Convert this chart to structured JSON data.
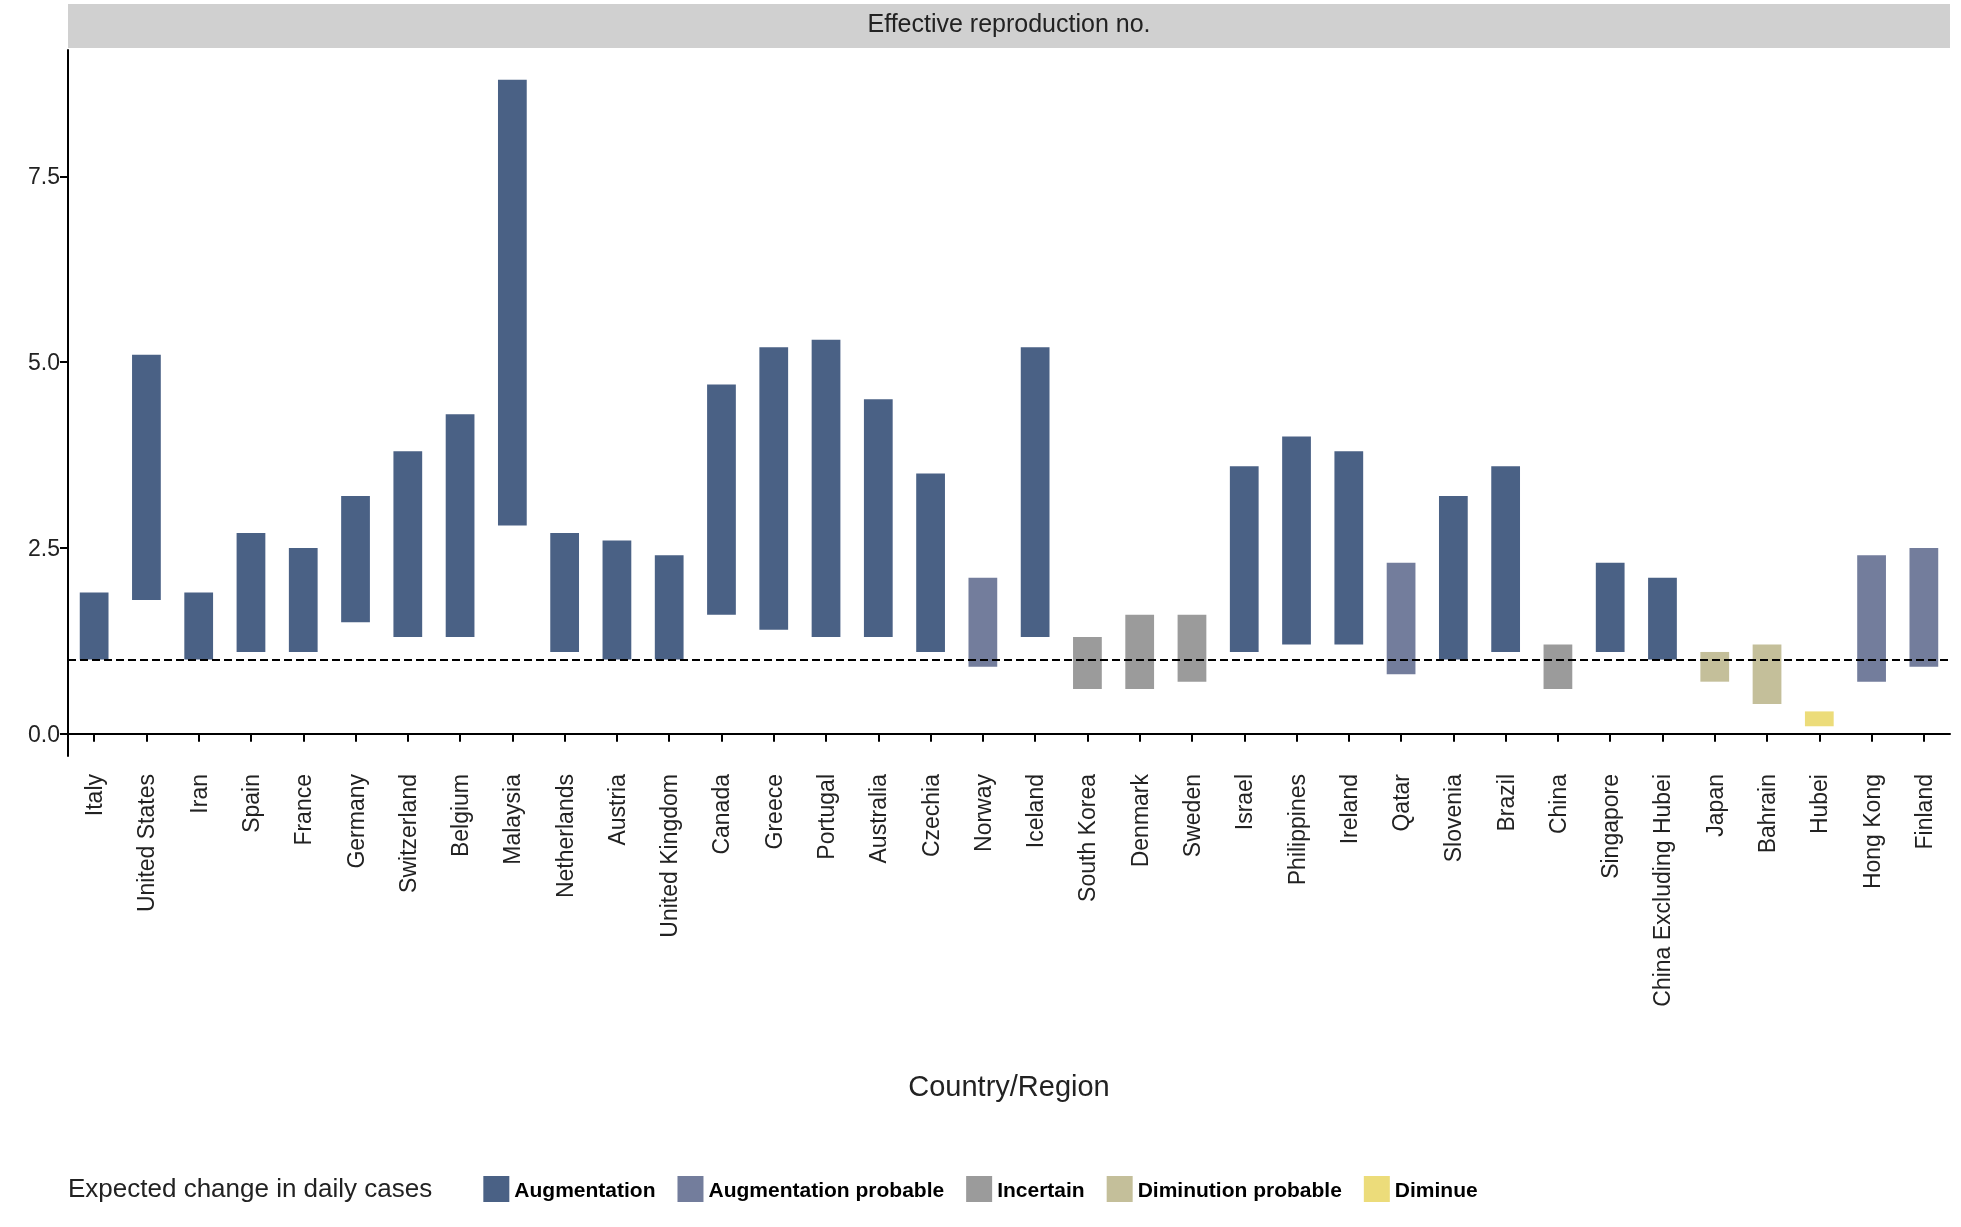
{
  "chart_data": {
    "type": "bar",
    "title": "Effective reproduction no.",
    "xlabel": "Country/Region",
    "legend_title": "Expected change in daily cases",
    "categories": [
      "Italy",
      "United States",
      "Iran",
      "Spain",
      "France",
      "Germany",
      "Switzerland",
      "Belgium",
      "Malaysia",
      "Netherlands",
      "Austria",
      "United Kingdom",
      "Canada",
      "Greece",
      "Portugal",
      "Australia",
      "Czechia",
      "Norway",
      "Iceland",
      "South Korea",
      "Denmark",
      "Sweden",
      "Israel",
      "Philippines",
      "Ireland",
      "Qatar",
      "Slovenia",
      "Brazil",
      "China",
      "Singapore",
      "China Excluding Hubei",
      "Japan",
      "Bahrain",
      "Hubei",
      "Hong Kong",
      "Finland"
    ],
    "series": [
      {
        "name": "Augmentation",
        "color": "#4a6185",
        "base": [
          1.0,
          1.8,
          1.0,
          1.1,
          1.1,
          1.5,
          1.3,
          1.3,
          2.8,
          1.1,
          1.0,
          1.0,
          1.6,
          1.4,
          1.3,
          1.3,
          1.1,
          null,
          1.3,
          null,
          null,
          null,
          1.1,
          1.2,
          1.2,
          null,
          1.0,
          1.1,
          null,
          1.1,
          1.0,
          null,
          null,
          null,
          null,
          null
        ],
        "values": [
          0.9,
          3.3,
          0.9,
          1.6,
          1.4,
          1.7,
          2.5,
          3.0,
          6.0,
          1.6,
          1.6,
          1.4,
          3.1,
          3.8,
          4.0,
          3.2,
          2.4,
          null,
          3.9,
          null,
          null,
          null,
          2.5,
          2.8,
          2.6,
          null,
          2.2,
          2.5,
          null,
          1.2,
          1.1,
          null,
          null,
          null,
          null,
          null
        ]
      },
      {
        "name": "Augmentation probable",
        "color": "#737d9c",
        "base": [
          null,
          null,
          null,
          null,
          null,
          null,
          null,
          null,
          null,
          null,
          null,
          null,
          null,
          null,
          null,
          null,
          null,
          0.9,
          null,
          null,
          null,
          null,
          null,
          null,
          null,
          0.8,
          null,
          null,
          null,
          null,
          null,
          null,
          null,
          null,
          0.7,
          0.9
        ],
        "values": [
          null,
          null,
          null,
          null,
          null,
          null,
          null,
          null,
          null,
          null,
          null,
          null,
          null,
          null,
          null,
          null,
          null,
          1.2,
          null,
          null,
          null,
          null,
          null,
          null,
          null,
          1.5,
          null,
          null,
          null,
          null,
          null,
          null,
          null,
          null,
          1.7,
          1.6
        ]
      },
      {
        "name": "Incertain",
        "color": "#9b9b9b",
        "base": [
          null,
          null,
          null,
          null,
          null,
          null,
          null,
          null,
          null,
          null,
          null,
          null,
          null,
          null,
          null,
          null,
          null,
          null,
          null,
          0.6,
          0.6,
          0.7,
          null,
          null,
          null,
          null,
          null,
          null,
          0.6,
          null,
          null,
          null,
          null,
          null,
          null,
          null
        ],
        "values": [
          null,
          null,
          null,
          null,
          null,
          null,
          null,
          null,
          null,
          null,
          null,
          null,
          null,
          null,
          null,
          null,
          null,
          null,
          null,
          0.7,
          1.0,
          0.9,
          null,
          null,
          null,
          null,
          null,
          null,
          0.6,
          null,
          null,
          null,
          null,
          null,
          null,
          null
        ]
      },
      {
        "name": "Diminution probable",
        "color": "#c4bf9a",
        "base": [
          null,
          null,
          null,
          null,
          null,
          null,
          null,
          null,
          null,
          null,
          null,
          null,
          null,
          null,
          null,
          null,
          null,
          null,
          null,
          null,
          null,
          null,
          null,
          null,
          null,
          null,
          null,
          null,
          null,
          null,
          null,
          0.7,
          0.4,
          null,
          null,
          null
        ],
        "values": [
          null,
          null,
          null,
          null,
          null,
          null,
          null,
          null,
          null,
          null,
          null,
          null,
          null,
          null,
          null,
          null,
          null,
          null,
          null,
          null,
          null,
          null,
          null,
          null,
          null,
          null,
          null,
          null,
          null,
          null,
          null,
          0.4,
          0.8,
          null,
          null,
          null
        ]
      },
      {
        "name": "Diminue",
        "color": "#ecdc7a",
        "base": [
          null,
          null,
          null,
          null,
          null,
          null,
          null,
          null,
          null,
          null,
          null,
          null,
          null,
          null,
          null,
          null,
          null,
          null,
          null,
          null,
          null,
          null,
          null,
          null,
          null,
          null,
          null,
          null,
          null,
          null,
          null,
          null,
          null,
          0.1,
          null,
          null
        ],
        "values": [
          null,
          null,
          null,
          null,
          null,
          null,
          null,
          null,
          null,
          null,
          null,
          null,
          null,
          null,
          null,
          null,
          null,
          null,
          null,
          null,
          null,
          null,
          null,
          null,
          null,
          null,
          null,
          null,
          null,
          null,
          null,
          null,
          null,
          0.2,
          null,
          null
        ]
      }
    ],
    "ylim": [
      -0.3,
      9.2
    ],
    "yticks": [
      {
        "value": 0,
        "label": "0.0"
      },
      2.5,
      {
        "value": 5,
        "label": "5.0"
      },
      7.5
    ],
    "ref_lines": [
      {
        "axis": "y",
        "value": 1,
        "line_style": "dashed",
        "color": "#000000"
      }
    ],
    "grid": false,
    "legend": "bottom"
  }
}
